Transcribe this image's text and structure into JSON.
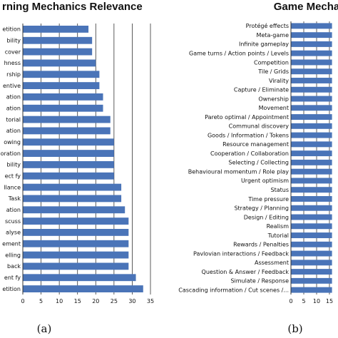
{
  "chart_data": [
    {
      "type": "bar",
      "orientation": "horizontal",
      "title": "rning Mechanics Relevance",
      "panel_label": "(a)",
      "xlim": [
        0,
        35
      ],
      "xticks": [
        0,
        5,
        10,
        15,
        20,
        25,
        30,
        35
      ],
      "grid": true,
      "bar_color": "#4a74b8",
      "categories": [
        "etition",
        "bility",
        "cover",
        "hness",
        "rship",
        "entive",
        "ation",
        "ation",
        "torial",
        "ation",
        "owing",
        "oration",
        "bility",
        "ect fy",
        "llance",
        "Task",
        "ation",
        "scuss",
        "alyse",
        "ement",
        "elling",
        "back",
        "ent fy",
        "etition"
      ],
      "values": [
        18,
        19,
        19,
        20,
        21,
        21,
        22,
        22,
        24,
        24,
        25,
        25,
        25,
        25,
        27,
        27,
        28,
        29,
        29,
        29,
        29,
        29,
        31,
        33
      ]
    },
    {
      "type": "bar",
      "orientation": "horizontal",
      "title": "Game Mechanics",
      "panel_label": "(b)",
      "xlim": [
        0,
        15
      ],
      "xticks": [
        0,
        5,
        10,
        15
      ],
      "grid": true,
      "bar_color": "#4a74b8",
      "categories": [
        "Protégé effects",
        "Meta-game",
        "Infinite gameplay",
        "Game turns / Action points / Levels",
        "Competition",
        "Tile / Grids",
        "Virality",
        "Capture / Eliminate",
        "Ownership",
        "Movement",
        "Pareto optimal / Appointment",
        "Communal discovery",
        "Goods / Information / Tokens",
        "Resource management",
        "Cooperation / Collaboration",
        "Selecting / Collecting",
        "Behavioural momentum / Role play",
        "Urgent optimism",
        "Status",
        "Time pressure",
        "Strategy / Planning",
        "Design / Editing",
        "Realism",
        "Tutorial",
        "Rewards / Penalties",
        "Pavlovian interactions / Feedback",
        "Assessment",
        "Question & Answer / Feedback",
        "Simulate / Response",
        "Cascading information / Cut scenes /..."
      ],
      "values": [
        16,
        16,
        16,
        16,
        16,
        16,
        16,
        16,
        16,
        16,
        16,
        16,
        16,
        16,
        16,
        16,
        16,
        16,
        16,
        16,
        16,
        16,
        16,
        16,
        16,
        16,
        16,
        16,
        16,
        16
      ]
    }
  ]
}
